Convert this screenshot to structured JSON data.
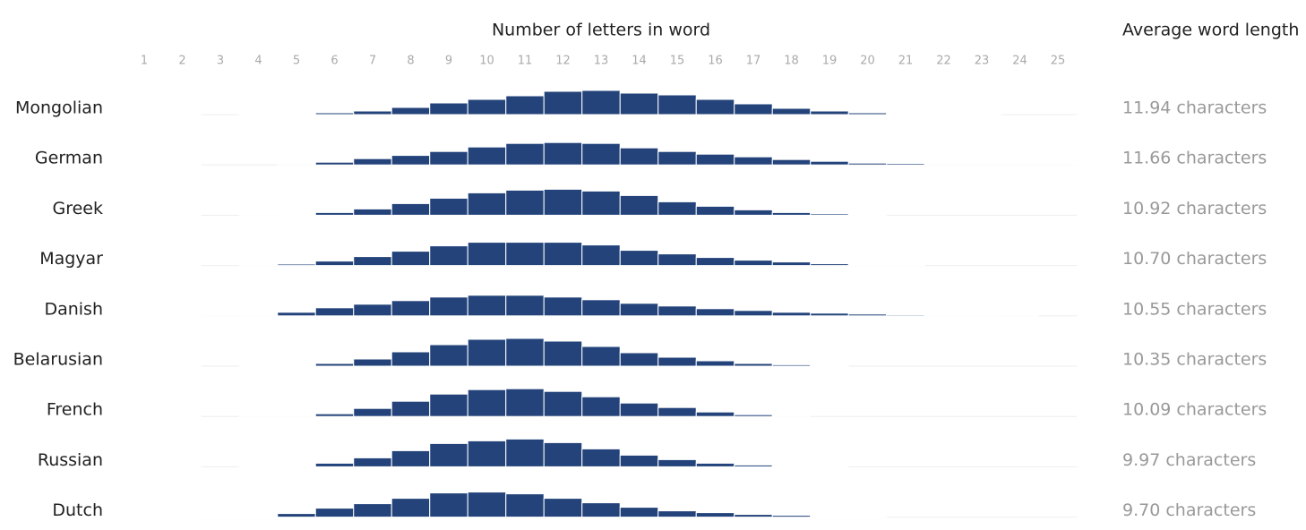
{
  "chart_data": {
    "type": "bar",
    "title": "Number of letters in word",
    "side_title": "Average word length",
    "categories": [
      1,
      2,
      3,
      4,
      5,
      6,
      7,
      8,
      9,
      10,
      11,
      12,
      13,
      14,
      15,
      16,
      17,
      18,
      19,
      20,
      21,
      22,
      23,
      24,
      25
    ],
    "ylim": [
      0,
      16
    ],
    "color": "#23437a",
    "series": [
      {
        "name": "Mongolian",
        "average_label": "11.94 characters",
        "values": [
          0,
          0,
          0,
          0.1,
          0.5,
          1,
          2,
          4,
          6.5,
          8.5,
          10.5,
          13,
          13.5,
          12,
          11,
          8.5,
          6,
          3.5,
          2,
          1,
          0.5,
          0.1,
          0.1,
          0,
          0
        ]
      },
      {
        "name": "German",
        "average_label": "11.66 characters",
        "values": [
          0,
          0,
          0,
          0,
          0.5,
          1.5,
          3.5,
          5.3,
          7.5,
          10,
          12,
          12.5,
          12,
          9.5,
          7.5,
          6,
          4.5,
          3,
          2,
          1,
          0.8,
          0.5,
          0.3,
          0.2,
          0.1
        ]
      },
      {
        "name": "Greek",
        "average_label": "10.92 characters",
        "values": [
          0,
          0,
          0,
          0.1,
          0.5,
          1.5,
          3.5,
          6.5,
          9.5,
          12.5,
          14,
          14.5,
          13.5,
          11,
          7.5,
          5,
          3,
          1.5,
          0.8,
          0.3,
          0,
          0,
          0,
          0,
          0
        ]
      },
      {
        "name": "Magyar",
        "average_label": "10.70 characters",
        "values": [
          0,
          0,
          0,
          0.2,
          0.8,
          2.5,
          5,
          8,
          11,
          13,
          13,
          13,
          11.5,
          8.5,
          6.5,
          4.5,
          3,
          2,
          1,
          0.5,
          0.3,
          0,
          0,
          0,
          0
        ]
      },
      {
        "name": "Danish",
        "average_label": "10.55 characters",
        "values": [
          0,
          0,
          0.1,
          0.5,
          2,
          4.5,
          6.5,
          8.5,
          10.5,
          11.5,
          11.5,
          10.5,
          9,
          7,
          5.5,
          4,
          3,
          2,
          1.5,
          1,
          0.6,
          0.4,
          0.2,
          0.1,
          0
        ]
      },
      {
        "name": "Belarusian",
        "average_label": "10.35 characters",
        "values": [
          0,
          0,
          0,
          0.1,
          0.3,
          1.5,
          4,
          8,
          12,
          15,
          15.5,
          14,
          11,
          7.5,
          5,
          3,
          1.5,
          0.8,
          0.3,
          0,
          0,
          0,
          0,
          0,
          0
        ]
      },
      {
        "name": "French",
        "average_label": "10.09 characters",
        "values": [
          0,
          0,
          0,
          0.1,
          0.5,
          1.5,
          4.5,
          8.5,
          12.5,
          15,
          15.5,
          14,
          11,
          7.5,
          5,
          2.5,
          1,
          0.3,
          0,
          0,
          0,
          0,
          0,
          0,
          0
        ]
      },
      {
        "name": "Russian",
        "average_label": "9.97 characters",
        "values": [
          0,
          0,
          0,
          0.1,
          0.5,
          2,
          5,
          9,
          13,
          14.5,
          15.5,
          13.5,
          10,
          6.5,
          4,
          2,
          1,
          0.3,
          0.1,
          0,
          0,
          0,
          0,
          0,
          0
        ]
      },
      {
        "name": "Dutch",
        "average_label": "9.70 characters",
        "values": [
          0,
          0,
          0.1,
          0.5,
          2,
          5,
          7.5,
          10.5,
          13.5,
          14,
          13,
          10.5,
          8,
          5.5,
          3.5,
          2.5,
          1.5,
          1,
          0.5,
          0.3,
          0,
          0,
          0,
          0,
          0
        ]
      }
    ]
  }
}
